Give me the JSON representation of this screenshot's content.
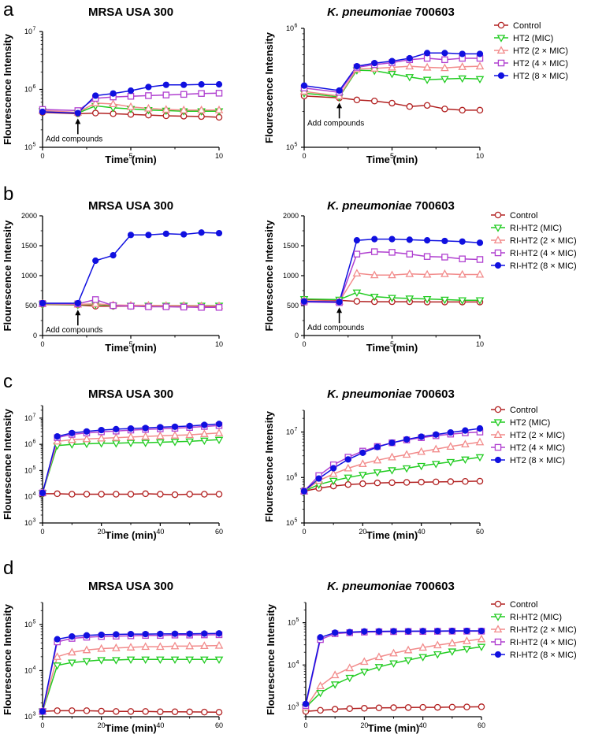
{
  "colors": {
    "control": "#b22222",
    "mic": "#22cc22",
    "mic2": "#f28b8b",
    "mic4": "#b040d0",
    "mic8": "#1010e0"
  },
  "legend_common": {
    "control": "Control"
  },
  "legend_ht2": [
    "HT2 (MIC)",
    "HT2 (2 × MIC)",
    "HT2 (4 × MIC)",
    "HT2 (8 × MIC)"
  ],
  "legend_riht2": [
    "RI-HT2 (MIC)",
    "RI-HT2 (2 × MIC)",
    "RI-HT2 (4 × MIC)",
    "RI-HT2 (8 × MIC)"
  ],
  "annotation": "Add compounds",
  "panels": [
    {
      "letter": "a",
      "title_left": "MRSA USA 300",
      "title_right_italic": "K. pneumoniae",
      "title_right_rest": " 700603"
    },
    {
      "letter": "b",
      "title_left": "MRSA USA 300",
      "title_right_italic": "K. pneumoniae",
      "title_right_rest": " 700603"
    },
    {
      "letter": "c",
      "title_left": "MRSA USA 300",
      "title_right_italic": "K. pneumoniae",
      "title_right_rest": " 700603"
    },
    {
      "letter": "d",
      "title_left": "MRSA USA 300",
      "title_right_italic": "K. pneumoniae",
      "title_right_rest": " 700603"
    }
  ],
  "chart_data": [
    {
      "id": "a-left",
      "type": "line",
      "title": "MRSA USA 300",
      "xlabel": "Time (min)",
      "ylabel": "Flourescence Intensity",
      "scale": "log",
      "xlim": [
        0,
        10
      ],
      "ylim": [
        100000,
        10000000
      ],
      "xticks": [
        "0",
        "5",
        "10"
      ],
      "yticks": [
        {
          "b": "10",
          "e": "5"
        },
        {
          "b": "10",
          "e": "6"
        },
        {
          "b": "10",
          "e": "7"
        }
      ],
      "annotation": {
        "text": "Add compounds",
        "x": 2
      },
      "x": [
        0,
        2,
        3,
        4,
        5,
        6,
        7,
        8,
        9,
        10
      ],
      "series": [
        {
          "name": "Control",
          "values": [
            400000,
            380000,
            390000,
            380000,
            370000,
            360000,
            350000,
            345000,
            340000,
            330000
          ]
        },
        {
          "name": "HT2 (MIC)",
          "values": [
            420000,
            390000,
            520000,
            480000,
            460000,
            440000,
            430000,
            420000,
            420000,
            420000
          ]
        },
        {
          "name": "HT2 (2 × MIC)",
          "values": [
            430000,
            400000,
            580000,
            560000,
            500000,
            470000,
            450000,
            440000,
            440000,
            440000
          ]
        },
        {
          "name": "HT2 (4 × MIC)",
          "values": [
            450000,
            430000,
            700000,
            740000,
            760000,
            780000,
            800000,
            820000,
            850000,
            860000
          ]
        },
        {
          "name": "HT2 (8 × MIC)",
          "values": [
            410000,
            390000,
            780000,
            850000,
            950000,
            1100000,
            1200000,
            1200000,
            1220000,
            1220000
          ]
        }
      ]
    },
    {
      "id": "a-right",
      "type": "line",
      "title": "K. pneumoniae 700603",
      "xlabel": "Time (min)",
      "ylabel": "Flourescence Intensity",
      "scale": "log",
      "xlim": [
        0,
        10
      ],
      "ylim": [
        100000,
        1000000
      ],
      "xticks": [
        "0",
        "5",
        "10"
      ],
      "yticks": [
        {
          "b": "10",
          "e": "5"
        },
        {
          "b": "10",
          "e": "6"
        }
      ],
      "annotation": {
        "text": "Add compounds",
        "x": 2
      },
      "x": [
        0,
        2,
        3,
        4,
        5,
        6,
        7,
        8,
        9,
        10
      ],
      "series": [
        {
          "name": "Control",
          "values": [
            270000,
            260000,
            250000,
            245000,
            235000,
            220000,
            225000,
            210000,
            205000,
            205000
          ]
        },
        {
          "name": "HT2 (MIC)",
          "values": [
            285000,
            265000,
            445000,
            440000,
            415000,
            390000,
            370000,
            375000,
            380000,
            375000
          ]
        },
        {
          "name": "HT2 (2 × MIC)",
          "values": [
            295000,
            270000,
            455000,
            460000,
            470000,
            480000,
            470000,
            465000,
            475000,
            480000
          ]
        },
        {
          "name": "HT2 (4 × MIC)",
          "values": [
            315000,
            290000,
            470000,
            495000,
            515000,
            545000,
            560000,
            545000,
            560000,
            560000
          ]
        },
        {
          "name": "HT2 (8 × MIC)",
          "values": [
            330000,
            300000,
            480000,
            510000,
            530000,
            560000,
            620000,
            620000,
            610000,
            610000
          ]
        }
      ]
    },
    {
      "id": "b-left",
      "type": "line",
      "title": "MRSA USA 300",
      "xlabel": "Time (min)",
      "ylabel": "Flourescence Intensity",
      "scale": "linear",
      "xlim": [
        0,
        10
      ],
      "ylim": [
        0,
        2000
      ],
      "xticks": [
        "0",
        "5",
        "10"
      ],
      "yticks": [
        "0",
        "500",
        "1000",
        "1500",
        "2000"
      ],
      "annotation": {
        "text": "Add compounds",
        "x": 2
      },
      "x": [
        0,
        2,
        3,
        4,
        5,
        6,
        7,
        8,
        9,
        10
      ],
      "series": [
        {
          "name": "Control",
          "values": [
            520,
            510,
            490,
            490,
            490,
            490,
            490,
            495,
            490,
            490
          ]
        },
        {
          "name": "RI-HT2 (MIC)",
          "values": [
            525,
            515,
            520,
            500,
            500,
            500,
            500,
            500,
            500,
            500
          ]
        },
        {
          "name": "RI-HT2 (2 × MIC)",
          "values": [
            530,
            520,
            530,
            510,
            505,
            505,
            500,
            500,
            495,
            495
          ]
        },
        {
          "name": "RI-HT2 (4 × MIC)",
          "values": [
            535,
            530,
            600,
            500,
            490,
            480,
            480,
            475,
            470,
            470
          ]
        },
        {
          "name": "RI-HT2 (8 × MIC)",
          "values": [
            540,
            540,
            1250,
            1340,
            1680,
            1680,
            1700,
            1690,
            1720,
            1710
          ]
        }
      ]
    },
    {
      "id": "b-right",
      "type": "line",
      "title": "K. pneumoniae 700603",
      "xlabel": "Time (min)",
      "ylabel": "Flourescence Intensity",
      "scale": "linear",
      "xlim": [
        0,
        10
      ],
      "ylim": [
        0,
        2000
      ],
      "xticks": [
        "0",
        "5",
        "10"
      ],
      "yticks": [
        "0",
        "500",
        "1000",
        "1500",
        "2000"
      ],
      "annotation": {
        "text": "Add compounds",
        "x": 2
      },
      "x": [
        0,
        2,
        3,
        4,
        5,
        6,
        7,
        8,
        9,
        10
      ],
      "series": [
        {
          "name": "Control",
          "values": [
            600,
            590,
            570,
            565,
            565,
            565,
            560,
            560,
            560,
            560
          ]
        },
        {
          "name": "RI-HT2 (MIC)",
          "values": [
            610,
            600,
            720,
            650,
            630,
            620,
            610,
            600,
            590,
            590
          ]
        },
        {
          "name": "RI-HT2 (2 × MIC)",
          "values": [
            585,
            570,
            1040,
            1010,
            1010,
            1030,
            1020,
            1030,
            1020,
            1020
          ]
        },
        {
          "name": "RI-HT2 (4 × MIC)",
          "values": [
            560,
            550,
            1360,
            1400,
            1390,
            1360,
            1320,
            1310,
            1280,
            1270
          ]
        },
        {
          "name": "RI-HT2 (8 × MIC)",
          "values": [
            570,
            560,
            1590,
            1610,
            1610,
            1600,
            1590,
            1580,
            1570,
            1550
          ]
        }
      ]
    },
    {
      "id": "c-left",
      "type": "line",
      "title": "MRSA USA 300",
      "xlabel": "Time (min)",
      "ylabel": "Flourescence Intensity",
      "scale": "log",
      "xlim": [
        0,
        60
      ],
      "ylim": [
        1000,
        30000000
      ],
      "xticks": [
        "0",
        "20",
        "40",
        "60"
      ],
      "yticks": [
        {
          "b": "10",
          "e": "3"
        },
        {
          "b": "10",
          "e": "4"
        },
        {
          "b": "10",
          "e": "5"
        },
        {
          "b": "10",
          "e": "6"
        },
        {
          "b": "10",
          "e": "7"
        }
      ],
      "x": [
        0,
        5,
        10,
        15,
        20,
        25,
        30,
        35,
        40,
        45,
        50,
        55,
        60
      ],
      "series": [
        {
          "name": "Control",
          "values": [
            13000,
            13000,
            12500,
            12500,
            12500,
            12500,
            12500,
            13000,
            12500,
            12000,
            12500,
            12500,
            12500
          ]
        },
        {
          "name": "HT2 (MIC)",
          "values": [
            14000,
            900000,
            1000000,
            1050000,
            1100000,
            1100000,
            1150000,
            1150000,
            1200000,
            1250000,
            1300000,
            1400000,
            1500000
          ]
        },
        {
          "name": "HT2 (2 × MIC)",
          "values": [
            14000,
            1300000,
            1500000,
            1600000,
            1700000,
            1800000,
            1900000,
            2000000,
            2100000,
            2200000,
            2300000,
            2500000,
            2700000
          ]
        },
        {
          "name": "HT2 (4 × MIC)",
          "values": [
            14000,
            1800000,
            2400000,
            2700000,
            3000000,
            3200000,
            3500000,
            3700000,
            3900000,
            4100000,
            4400000,
            4800000,
            5200000
          ]
        },
        {
          "name": "HT2 (8 × MIC)",
          "values": [
            14000,
            2000000,
            2700000,
            3100000,
            3500000,
            3800000,
            4000000,
            4200000,
            4500000,
            4700000,
            5000000,
            5500000,
            6000000
          ]
        }
      ]
    },
    {
      "id": "c-right",
      "type": "line",
      "title": "K. pneumoniae 700603",
      "xlabel": "Time (min)",
      "ylabel": "Flourescence Intensity",
      "scale": "log",
      "xlim": [
        0,
        60
      ],
      "ylim": [
        100000,
        30000000
      ],
      "xticks": [
        "0",
        "20",
        "40",
        "60"
      ],
      "yticks": [
        {
          "b": "10",
          "e": "5"
        },
        {
          "b": "10",
          "e": "6"
        },
        {
          "b": "10",
          "e": "7"
        }
      ],
      "x": [
        0,
        5,
        10,
        15,
        20,
        25,
        30,
        35,
        40,
        45,
        50,
        55,
        60
      ],
      "series": [
        {
          "name": "Control",
          "values": [
            500000,
            580000,
            650000,
            700000,
            730000,
            760000,
            770000,
            780000,
            790000,
            800000,
            810000,
            820000,
            830000
          ]
        },
        {
          "name": "HT2 (MIC)",
          "values": [
            500000,
            700000,
            850000,
            1000000,
            1150000,
            1300000,
            1450000,
            1600000,
            1800000,
            2000000,
            2200000,
            2500000,
            2800000
          ]
        },
        {
          "name": "HT2 (2 × MIC)",
          "values": [
            500000,
            850000,
            1200000,
            1600000,
            2000000,
            2400000,
            2800000,
            3200000,
            3700000,
            4200000,
            4800000,
            5400000,
            6000000
          ]
        },
        {
          "name": "HT2 (4 × MIC)",
          "values": [
            500000,
            1100000,
            1900000,
            2800000,
            3800000,
            4800000,
            5800000,
            6700000,
            7500000,
            8300000,
            9000000,
            9600000,
            10000000
          ]
        },
        {
          "name": "HT2 (8 × MIC)",
          "values": [
            500000,
            950000,
            1600000,
            2500000,
            3500000,
            4700000,
            5800000,
            6900000,
            7900000,
            8800000,
            9800000,
            10800000,
            12000000
          ]
        }
      ]
    },
    {
      "id": "d-left",
      "type": "line",
      "title": "MRSA USA 300",
      "xlabel": "Time (min)",
      "ylabel": "Flourescence Intensity",
      "scale": "log",
      "xlim": [
        0,
        60
      ],
      "ylim": [
        1000,
        300000
      ],
      "xticks": [
        "0",
        "20",
        "40",
        "60"
      ],
      "yticks": [
        {
          "b": "10",
          "e": "3"
        },
        {
          "b": "10",
          "e": "4"
        },
        {
          "b": "10",
          "e": "5"
        }
      ],
      "x": [
        0,
        5,
        10,
        15,
        20,
        25,
        30,
        35,
        40,
        45,
        50,
        55,
        60
      ],
      "series": [
        {
          "name": "Control",
          "values": [
            1300,
            1350,
            1350,
            1350,
            1320,
            1300,
            1300,
            1300,
            1280,
            1280,
            1270,
            1260,
            1250
          ]
        },
        {
          "name": "RI-HT2 (MIC)",
          "values": [
            1300,
            13000,
            15000,
            16000,
            17000,
            17000,
            17500,
            17500,
            17500,
            17500,
            17500,
            17500,
            17500
          ]
        },
        {
          "name": "RI-HT2 (2 × MIC)",
          "values": [
            1300,
            20000,
            25000,
            28000,
            30000,
            31000,
            32000,
            33000,
            33000,
            34000,
            34000,
            34500,
            35000
          ]
        },
        {
          "name": "RI-HT2 (4 × MIC)",
          "values": [
            1300,
            42000,
            50000,
            53000,
            55000,
            56000,
            57000,
            58000,
            58000,
            59000,
            59000,
            59500,
            60000
          ]
        },
        {
          "name": "RI-HT2 (8 × MIC)",
          "values": [
            1300,
            48000,
            55000,
            58000,
            60000,
            61000,
            62000,
            62000,
            62500,
            63000,
            63000,
            63500,
            64000
          ]
        }
      ]
    },
    {
      "id": "d-right",
      "type": "line",
      "title": "K. pneumoniae 700603",
      "xlabel": "Time (min)",
      "ylabel": "Flourescence Intensity",
      "scale": "log",
      "xlim": [
        0,
        60
      ],
      "ylim": [
        600,
        300000
      ],
      "xticks": [
        "0",
        "20",
        "40",
        "60"
      ],
      "yticks": [
        {
          "b": "10",
          "e": "3"
        },
        {
          "b": "10",
          "e": "4"
        },
        {
          "b": "10",
          "e": "5"
        }
      ],
      "x": [
        0,
        5,
        10,
        15,
        20,
        25,
        30,
        35,
        40,
        45,
        50,
        55,
        60
      ],
      "series": [
        {
          "name": "Control",
          "values": [
            800,
            850,
            900,
            930,
            950,
            970,
            980,
            990,
            1000,
            1000,
            1010,
            1020,
            1030
          ]
        },
        {
          "name": "RI-HT2 (MIC)",
          "values": [
            1000,
            2200,
            3500,
            5000,
            7000,
            9000,
            11000,
            13000,
            15500,
            18000,
            21000,
            24000,
            27000
          ]
        },
        {
          "name": "RI-HT2 (2 × MIC)",
          "values": [
            1000,
            3200,
            5800,
            8500,
            12000,
            15500,
            19000,
            22500,
            26000,
            29500,
            33000,
            37000,
            41000
          ]
        },
        {
          "name": "RI-HT2 (4 × MIC)",
          "values": [
            1100,
            40000,
            55000,
            58000,
            60000,
            61000,
            61500,
            62000,
            62000,
            62500,
            63000,
            63000,
            63000
          ]
        },
        {
          "name": "RI-HT2 (8 × MIC)",
          "values": [
            1200,
            45000,
            58000,
            60000,
            62000,
            62500,
            63000,
            63000,
            63500,
            63500,
            64000,
            64000,
            64000
          ]
        }
      ]
    }
  ]
}
